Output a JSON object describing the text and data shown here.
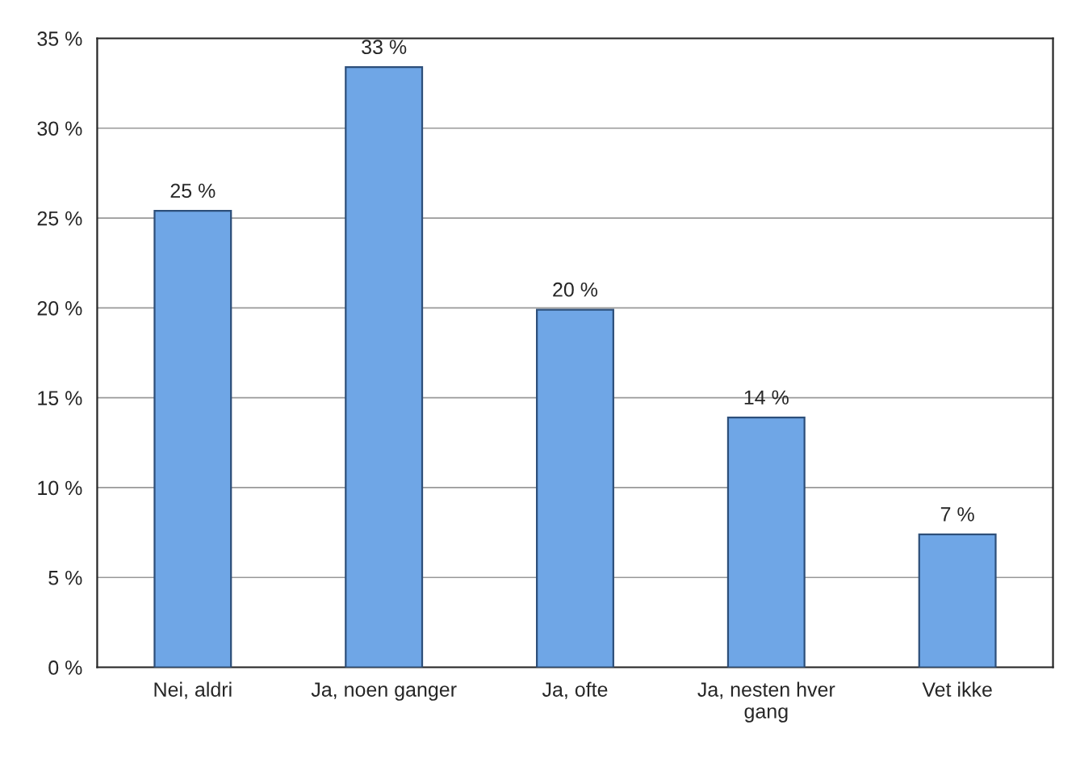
{
  "chart_data": {
    "type": "bar",
    "categories": [
      "Nei, aldri",
      "Ja, noen ganger",
      "Ja, ofte",
      "Ja, nesten hver gang",
      "Vet ikke"
    ],
    "values": [
      25.4,
      33.4,
      19.9,
      13.9,
      7.4
    ],
    "value_labels": [
      "25 %",
      "33 %",
      "20 %",
      "14 %",
      "7 %"
    ],
    "color": "#6fa6e6",
    "ylim": [
      0,
      35
    ],
    "yticks": [
      {
        "value": 0,
        "label": "0 %"
      },
      {
        "value": 5,
        "label": "5 %"
      },
      {
        "value": 10,
        "label": "10 %"
      },
      {
        "value": 15,
        "label": "15 %"
      },
      {
        "value": 20,
        "label": "20 %"
      },
      {
        "value": 25,
        "label": "25 %"
      },
      {
        "value": 30,
        "label": "30 %"
      },
      {
        "value": 35,
        "label": "35 %"
      }
    ],
    "grid": "y"
  }
}
